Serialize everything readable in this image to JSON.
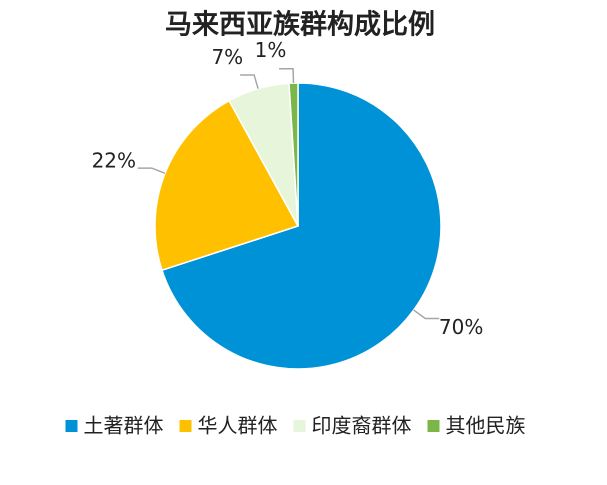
{
  "chart_data": {
    "type": "pie",
    "title": "马来西亚族群构成比例",
    "categories": [
      "土著群体",
      "华人群体",
      "印度裔群体",
      "其他民族"
    ],
    "values": [
      70,
      22,
      7,
      1
    ],
    "value_labels": [
      "70%",
      "22%",
      "7%",
      "1%"
    ],
    "colors": [
      "#0092d6",
      "#ffc000",
      "#e7f5da",
      "#7ab648"
    ],
    "legend": "bottom"
  }
}
